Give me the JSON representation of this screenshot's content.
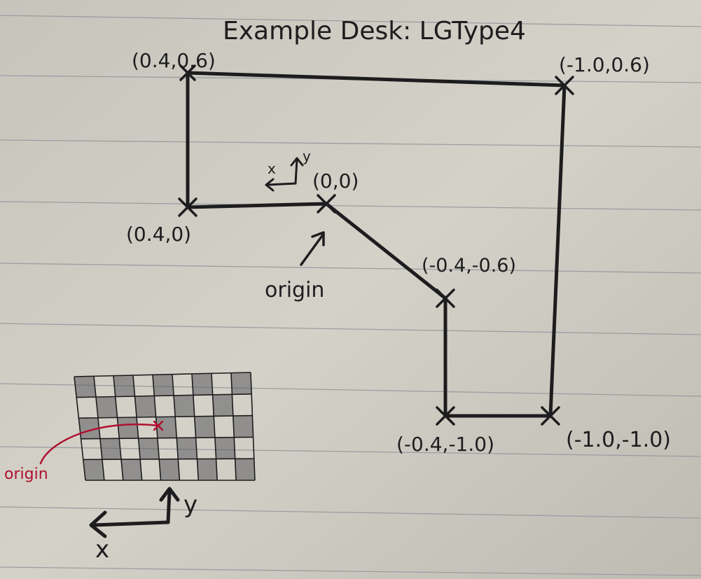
{
  "title": "Example Desk: LGType4",
  "colors": {
    "ink": "#1d1d1f",
    "red_ink": "#b01030",
    "paper": "#cfcdc3",
    "rule": "#9b9da3"
  },
  "vertices": [
    {
      "id": "top-left",
      "label": "(0.4,0.6)"
    },
    {
      "id": "top-right",
      "label": "(-1.0,0.6)"
    },
    {
      "id": "mid-left",
      "label": "(0.4,0)"
    },
    {
      "id": "origin",
      "label": "(0,0)"
    },
    {
      "id": "mid-right",
      "label": "(-0.4,-0.6)"
    },
    {
      "id": "bottom-left",
      "label": "(-0.4,-1.0)"
    },
    {
      "id": "bottom-right",
      "label": "(-1.0,-1.0)"
    }
  ],
  "origin_note": "origin",
  "axis_x_label": "x",
  "axis_y_label": "y",
  "checkerboard_origin_note": "origin"
}
